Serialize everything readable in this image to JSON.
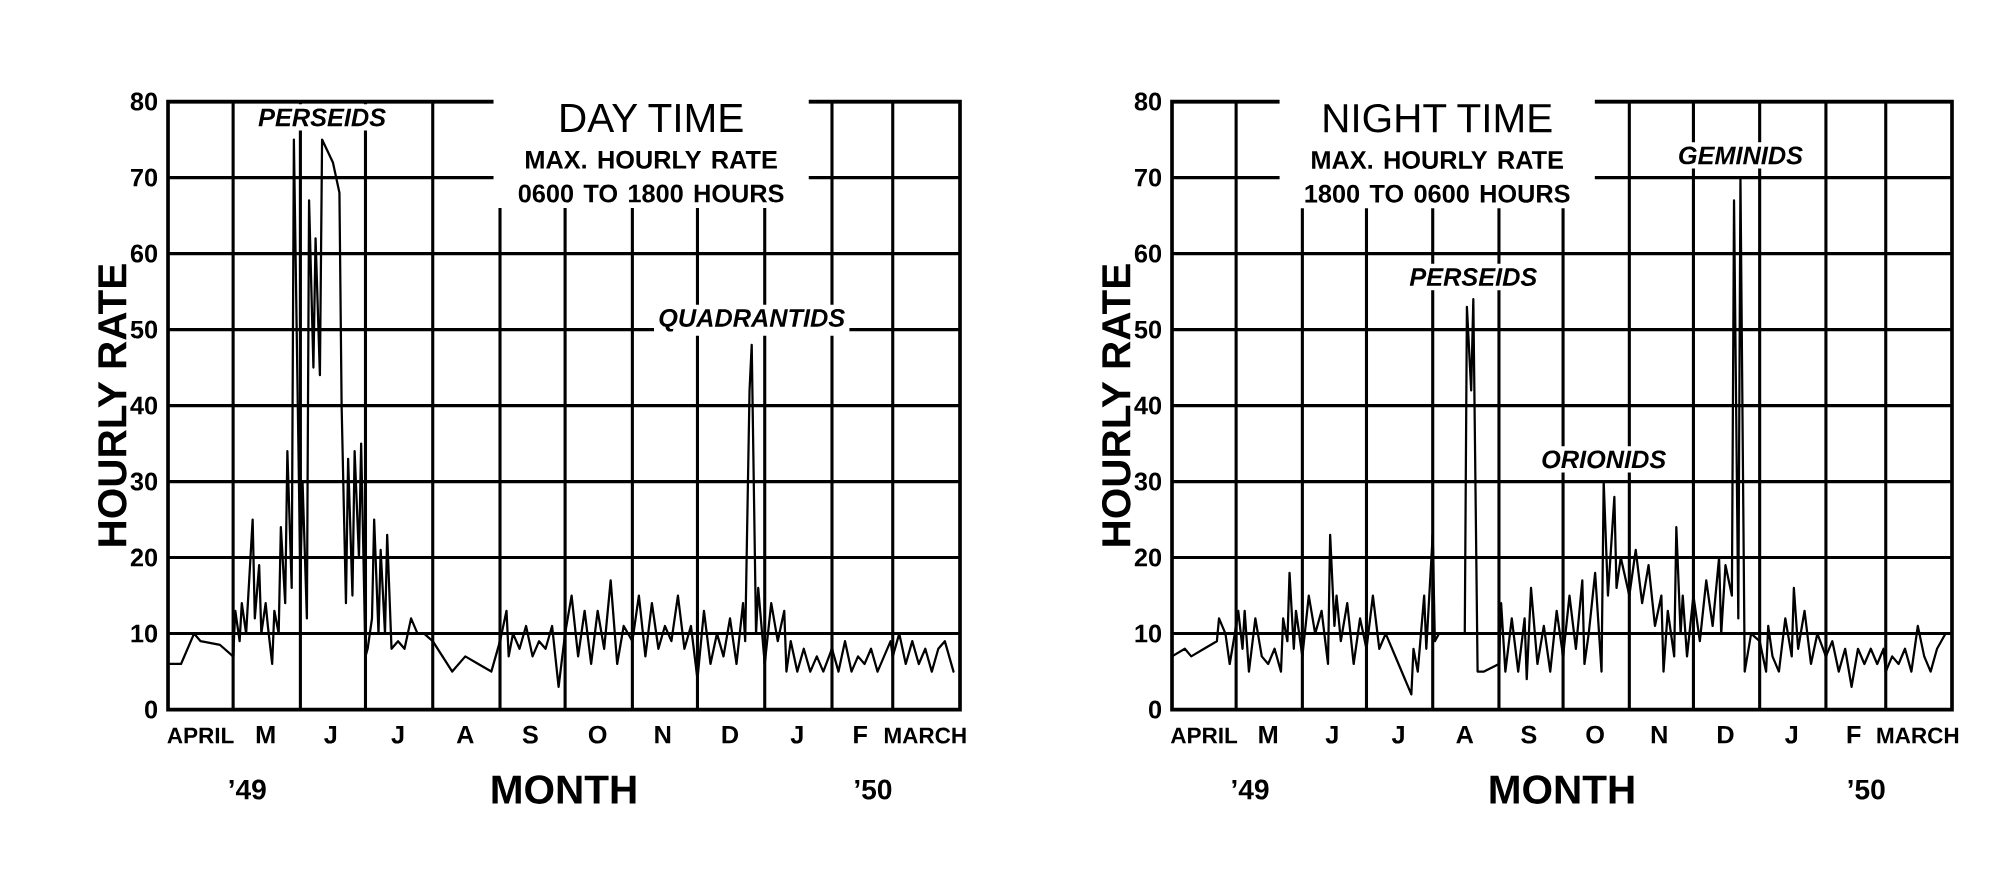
{
  "chart_data": [
    {
      "type": "line",
      "title": "DAY TIME",
      "subtitle": "MAX. HOURLY RATE 0600 TO 1800 HOURS",
      "xlabel": "MONTH",
      "ylabel": "HOURLY RATE",
      "xlim": [
        "1949-04-01",
        "1950-04-01"
      ],
      "ylim": [
        0,
        80
      ],
      "yticks": [
        0,
        10,
        20,
        30,
        40,
        50,
        60,
        70,
        80
      ],
      "xticks": [
        {
          "value": "1949-04-16",
          "label": "APRIL"
        },
        {
          "value": "1949-05-16",
          "label": "M"
        },
        {
          "value": "1949-06-15",
          "label": "J"
        },
        {
          "value": "1949-07-16",
          "label": "J"
        },
        {
          "value": "1949-08-16",
          "label": "A"
        },
        {
          "value": "1949-09-15",
          "label": "S"
        },
        {
          "value": "1949-10-16",
          "label": "O"
        },
        {
          "value": "1949-11-15",
          "label": "N"
        },
        {
          "value": "1949-12-16",
          "label": "D"
        },
        {
          "value": "1950-01-16",
          "label": "J"
        },
        {
          "value": "1950-02-14",
          "label": "F"
        },
        {
          "value": "1950-03-16",
          "label": "MARCH"
        },
        {
          "value": "1949-05-01",
          "label": null
        },
        {
          "value": "1949-06-01",
          "label": null
        },
        {
          "value": "1949-07-01",
          "label": null
        },
        {
          "value": "1949-08-01",
          "label": null
        },
        {
          "value": "1949-09-01",
          "label": null
        },
        {
          "value": "1949-10-01",
          "label": null
        },
        {
          "value": "1949-11-01",
          "label": null
        },
        {
          "value": "1949-12-01",
          "label": null
        },
        {
          "value": "1950-01-01",
          "label": null
        },
        {
          "value": "1950-02-01",
          "label": null
        },
        {
          "value": "1950-03-01",
          "label": null
        }
      ],
      "grid": true,
      "annotations": [
        {
          "text": "PERSEIDS",
          "x": "1949-06-11",
          "y": 75
        },
        {
          "text": "QUADRANTIDS",
          "x": "1949-12-26",
          "y": 48
        },
        "’49",
        "’50"
      ],
      "x": [
        "1949-04-01",
        "1949-04-07",
        "1949-04-13",
        "1949-04-16",
        "1949-04-25",
        "1949-05-01",
        "1949-05-02",
        "1949-05-04",
        "1949-05-05",
        "1949-05-07",
        "1949-05-10",
        "1949-05-11",
        "1949-05-13",
        "1949-05-14",
        "1949-05-16",
        "1949-05-17",
        "1949-05-19",
        "1949-05-20",
        "1949-05-22",
        "1949-05-23",
        "1949-05-25",
        "1949-05-26",
        "1949-05-28",
        "1949-05-29",
        "1949-06-01",
        "1949-06-02",
        "1949-06-04",
        "1949-06-05",
        "1949-06-07",
        "1949-06-08",
        "1949-06-10",
        "1949-06-11",
        "1949-06-16",
        "1949-06-19",
        "1949-06-20",
        "1949-06-22",
        "1949-06-23",
        "1949-06-25",
        "1949-06-26",
        "1949-06-28",
        "1949-06-29",
        "1949-07-01",
        "1949-07-02",
        "1949-07-04",
        "1949-07-05",
        "1949-07-07",
        "1949-07-08",
        "1949-07-10",
        "1949-07-11",
        "1949-07-13",
        "1949-07-16",
        "1949-07-19",
        "1949-07-22",
        "1949-07-25",
        "1949-07-28",
        "1949-08-01",
        "1949-08-10",
        "1949-08-16",
        "1949-08-22",
        "1949-08-28",
        "1949-09-01",
        "1949-09-04",
        "1949-09-05",
        "1949-09-07",
        "1949-09-10",
        "1949-09-13",
        "1949-09-16",
        "1949-09-19",
        "1949-09-22",
        "1949-09-25",
        "1949-09-28",
        "1949-10-01",
        "1949-10-04",
        "1949-10-07",
        "1949-10-10",
        "1949-10-13",
        "1949-10-16",
        "1949-10-19",
        "1949-10-22",
        "1949-10-25",
        "1949-10-28",
        "1949-11-01",
        "1949-11-04",
        "1949-11-07",
        "1949-11-10",
        "1949-11-13",
        "1949-11-16",
        "1949-11-19",
        "1949-11-22",
        "1949-11-25",
        "1949-11-28",
        "1949-12-01",
        "1949-12-04",
        "1949-12-07",
        "1949-12-10",
        "1949-12-13",
        "1949-12-16",
        "1949-12-19",
        "1949-12-22",
        "1949-12-23",
        "1949-12-25",
        "1949-12-26",
        "1949-12-28",
        "1949-12-29",
        "1950-01-01",
        "1950-01-04",
        "1950-01-07",
        "1950-01-10",
        "1950-01-11",
        "1950-01-13",
        "1950-01-16",
        "1950-01-19",
        "1950-01-22",
        "1950-01-25",
        "1950-01-28",
        "1950-02-01",
        "1950-02-04",
        "1950-02-07",
        "1950-02-10",
        "1950-02-13",
        "1950-02-16",
        "1950-02-19",
        "1950-02-22",
        "1950-02-25",
        "1950-02-28",
        "1950-03-01",
        "1950-03-04",
        "1950-03-07",
        "1950-03-10",
        "1950-03-13",
        "1950-03-16",
        "1950-03-19",
        "1950-03-22",
        "1950-03-25",
        "1950-03-29"
      ],
      "series": [
        {
          "color": "#000000",
          "values": [
            6,
            6,
            10,
            9,
            8.5,
            7,
            13,
            9,
            14,
            10,
            25,
            12,
            19,
            10,
            14,
            11,
            6,
            13,
            10,
            24,
            14,
            34,
            16,
            75,
            17,
            30,
            12,
            67,
            45,
            62,
            44,
            75,
            72,
            68,
            40,
            14,
            33,
            15,
            34,
            20,
            35,
            7,
            8,
            12,
            25,
            10,
            21,
            10,
            23,
            8,
            9,
            8,
            12,
            10,
            10,
            9,
            5,
            7,
            6,
            5,
            9,
            13,
            7,
            10,
            8,
            11,
            7,
            9,
            8,
            11,
            3,
            10,
            15,
            7,
            13,
            6,
            13,
            8,
            17,
            6,
            11,
            9,
            15,
            7,
            14,
            8,
            11,
            9,
            15,
            8,
            11,
            4,
            13,
            6,
            10,
            7,
            12,
            6,
            14,
            9,
            42,
            48,
            10,
            16,
            6,
            14,
            9,
            13,
            5,
            9,
            5,
            8,
            5,
            7,
            5,
            8,
            5,
            9,
            5,
            7,
            6,
            8,
            5,
            7,
            9,
            7,
            10,
            6,
            9,
            6,
            8,
            5,
            8,
            9,
            5
          ]
        }
      ]
    },
    {
      "type": "line",
      "title": "NIGHT TIME",
      "subtitle": "MAX. HOURLY RATE 1800 TO 0600 HOURS",
      "xlabel": "MONTH",
      "ylabel": "HOURLY RATE",
      "xlim": [
        "1949-04-01",
        "1950-04-01"
      ],
      "ylim": [
        0,
        80
      ],
      "yticks": [
        0,
        10,
        20,
        30,
        40,
        50,
        60,
        70,
        80
      ],
      "xticks": [
        {
          "value": "1949-04-16",
          "label": "APRIL"
        },
        {
          "value": "1949-05-16",
          "label": "M"
        },
        {
          "value": "1949-06-15",
          "label": "J"
        },
        {
          "value": "1949-07-16",
          "label": "J"
        },
        {
          "value": "1949-08-16",
          "label": "A"
        },
        {
          "value": "1949-09-15",
          "label": "S"
        },
        {
          "value": "1949-10-16",
          "label": "O"
        },
        {
          "value": "1949-11-15",
          "label": "N"
        },
        {
          "value": "1949-12-16",
          "label": "D"
        },
        {
          "value": "1950-01-16",
          "label": "J"
        },
        {
          "value": "1950-02-14",
          "label": "F"
        },
        {
          "value": "1950-03-16",
          "label": "MARCH"
        },
        {
          "value": "1949-05-01",
          "label": null
        },
        {
          "value": "1949-06-01",
          "label": null
        },
        {
          "value": "1949-07-01",
          "label": null
        },
        {
          "value": "1949-08-01",
          "label": null
        },
        {
          "value": "1949-09-01",
          "label": null
        },
        {
          "value": "1949-10-01",
          "label": null
        },
        {
          "value": "1949-11-01",
          "label": null
        },
        {
          "value": "1949-12-01",
          "label": null
        },
        {
          "value": "1950-01-01",
          "label": null
        },
        {
          "value": "1950-02-01",
          "label": null
        },
        {
          "value": "1950-03-01",
          "label": null
        }
      ],
      "grid": true,
      "annotations": [
        {
          "text": "PERSEIDS",
          "x": "1949-08-20",
          "y": 54
        },
        {
          "text": "ORIONIDS",
          "x": "1949-10-20",
          "y": 30
        },
        {
          "text": "GEMINIDS",
          "x": "1949-12-23",
          "y": 70
        },
        "’49",
        "’50"
      ],
      "x": [
        "1949-04-01",
        "1949-04-07",
        "1949-04-10",
        "1949-04-16",
        "1949-04-22",
        "1949-04-23",
        "1949-04-26",
        "1949-04-28",
        "1949-05-01",
        "1949-05-02",
        "1949-05-04",
        "1949-05-05",
        "1949-05-07",
        "1949-05-10",
        "1949-05-13",
        "1949-05-16",
        "1949-05-19",
        "1949-05-22",
        "1949-05-23",
        "1949-05-25",
        "1949-05-26",
        "1949-05-28",
        "1949-05-29",
        "1949-06-01",
        "1949-06-04",
        "1949-06-07",
        "1949-06-10",
        "1949-06-13",
        "1949-06-14",
        "1949-06-16",
        "1949-06-17",
        "1949-06-19",
        "1949-06-22",
        "1949-06-25",
        "1949-06-28",
        "1949-07-01",
        "1949-07-04",
        "1949-07-07",
        "1949-07-10",
        "1949-07-16",
        "1949-07-22",
        "1949-07-23",
        "1949-07-25",
        "1949-07-28",
        "1949-07-29",
        "1949-08-01",
        "1949-08-02",
        "1949-08-04",
        "1949-08-10",
        "1949-08-16",
        "1949-08-17",
        "1949-08-19",
        "1949-08-20",
        "1949-08-22",
        "1949-08-25",
        "1949-09-01",
        "1949-09-02",
        "1949-09-04",
        "1949-09-07",
        "1949-09-10",
        "1949-09-13",
        "1949-09-14",
        "1949-09-16",
        "1949-09-19",
        "1949-09-22",
        "1949-09-25",
        "1949-09-28",
        "1949-10-01",
        "1949-10-04",
        "1949-10-07",
        "1949-10-10",
        "1949-10-11",
        "1949-10-13",
        "1949-10-16",
        "1949-10-19",
        "1949-10-20",
        "1949-10-22",
        "1949-10-25",
        "1949-10-26",
        "1949-10-28",
        "1949-11-01",
        "1949-11-04",
        "1949-11-07",
        "1949-11-10",
        "1949-11-13",
        "1949-11-16",
        "1949-11-17",
        "1949-11-19",
        "1949-11-22",
        "1949-11-23",
        "1949-11-25",
        "1949-11-26",
        "1949-11-28",
        "1949-12-01",
        "1949-12-04",
        "1949-12-07",
        "1949-12-10",
        "1949-12-13",
        "1949-12-14",
        "1949-12-16",
        "1949-12-19",
        "1949-12-20",
        "1949-12-22",
        "1949-12-23",
        "1949-12-25",
        "1949-12-28",
        "1950-01-01",
        "1950-01-04",
        "1950-01-05",
        "1950-01-07",
        "1950-01-10",
        "1950-01-13",
        "1950-01-16",
        "1950-01-17",
        "1950-01-19",
        "1950-01-22",
        "1950-01-25",
        "1950-01-28",
        "1950-02-01",
        "1950-02-04",
        "1950-02-07",
        "1950-02-10",
        "1950-02-13",
        "1950-02-16",
        "1950-02-19",
        "1950-02-22",
        "1950-02-25",
        "1950-02-28",
        "1950-03-01",
        "1950-03-04",
        "1950-03-07",
        "1950-03-10",
        "1950-03-13",
        "1950-03-16",
        "1950-03-19",
        "1950-03-22",
        "1950-03-25",
        "1950-03-29"
      ],
      "series": [
        {
          "color": "#000000",
          "values": [
            7,
            8,
            7,
            8,
            9,
            12,
            10,
            6,
            11,
            13,
            8,
            13,
            5,
            12,
            7,
            6,
            8,
            5,
            12,
            9,
            18,
            8,
            13,
            7,
            15,
            10,
            13,
            6,
            23,
            11,
            15,
            9,
            14,
            6,
            12,
            8,
            15,
            8,
            10,
            6,
            2,
            8,
            5,
            15,
            8,
            23,
            9,
            10,
            10,
            10,
            53,
            42,
            54,
            5,
            5,
            6,
            14,
            5,
            12,
            5,
            12,
            4,
            16,
            6,
            11,
            5,
            13,
            7,
            15,
            8,
            17,
            6,
            10,
            18,
            5,
            30,
            15,
            28,
            16,
            20,
            15,
            21,
            14,
            19,
            11,
            15,
            5,
            13,
            7,
            24,
            10,
            15,
            7,
            15,
            9,
            17,
            11,
            20,
            10,
            19,
            15,
            67,
            12,
            70,
            5,
            10,
            9,
            5,
            11,
            7,
            5,
            12,
            7,
            16,
            8,
            13,
            6,
            10,
            7,
            9,
            5,
            8,
            3,
            8,
            6,
            8,
            6,
            8,
            5,
            7,
            6,
            8,
            5,
            11,
            7,
            5,
            8,
            10
          ]
        }
      ]
    }
  ]
}
